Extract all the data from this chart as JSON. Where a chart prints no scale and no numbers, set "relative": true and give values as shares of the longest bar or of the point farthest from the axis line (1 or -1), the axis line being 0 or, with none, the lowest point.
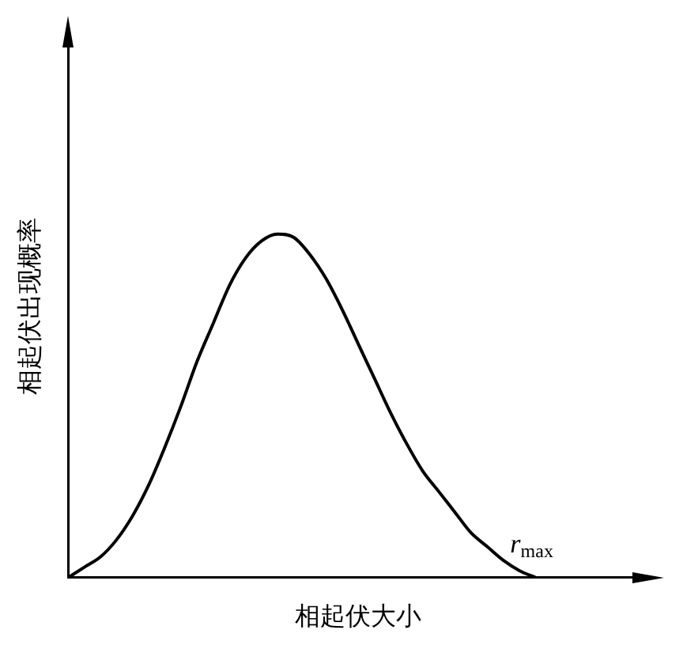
{
  "chart_data": {
    "type": "line",
    "relative": true,
    "xlabel": "相起伏大小",
    "ylabel": "相起伏出现概率",
    "color": "#000000",
    "marker": "none",
    "line_style": "solid",
    "grid": false,
    "legend": false,
    "categories": [
      null,
      null,
      null,
      null,
      null,
      null,
      null,
      null,
      null,
      null,
      null,
      null,
      null,
      null,
      null,
      null,
      null,
      null,
      null,
      null,
      null,
      null,
      null,
      null,
      null,
      null,
      null,
      null,
      null,
      null,
      null,
      null,
      null,
      null,
      null,
      null,
      null
    ],
    "values": [
      0,
      0.03,
      0.06,
      0.11,
      0.18,
      0.27,
      0.38,
      0.5,
      0.63,
      0.74,
      0.85,
      0.93,
      0.98,
      1,
      0.99,
      0.94,
      0.87,
      0.78,
      0.68,
      0.58,
      0.48,
      0.39,
      0.31,
      0.25,
      0.19,
      0.13,
      0.09,
      0.05,
      0.02,
      0,
      null,
      null,
      null,
      null,
      null,
      null,
      null
    ],
    "annotations": [
      "r$_{max}$"
    ]
  }
}
